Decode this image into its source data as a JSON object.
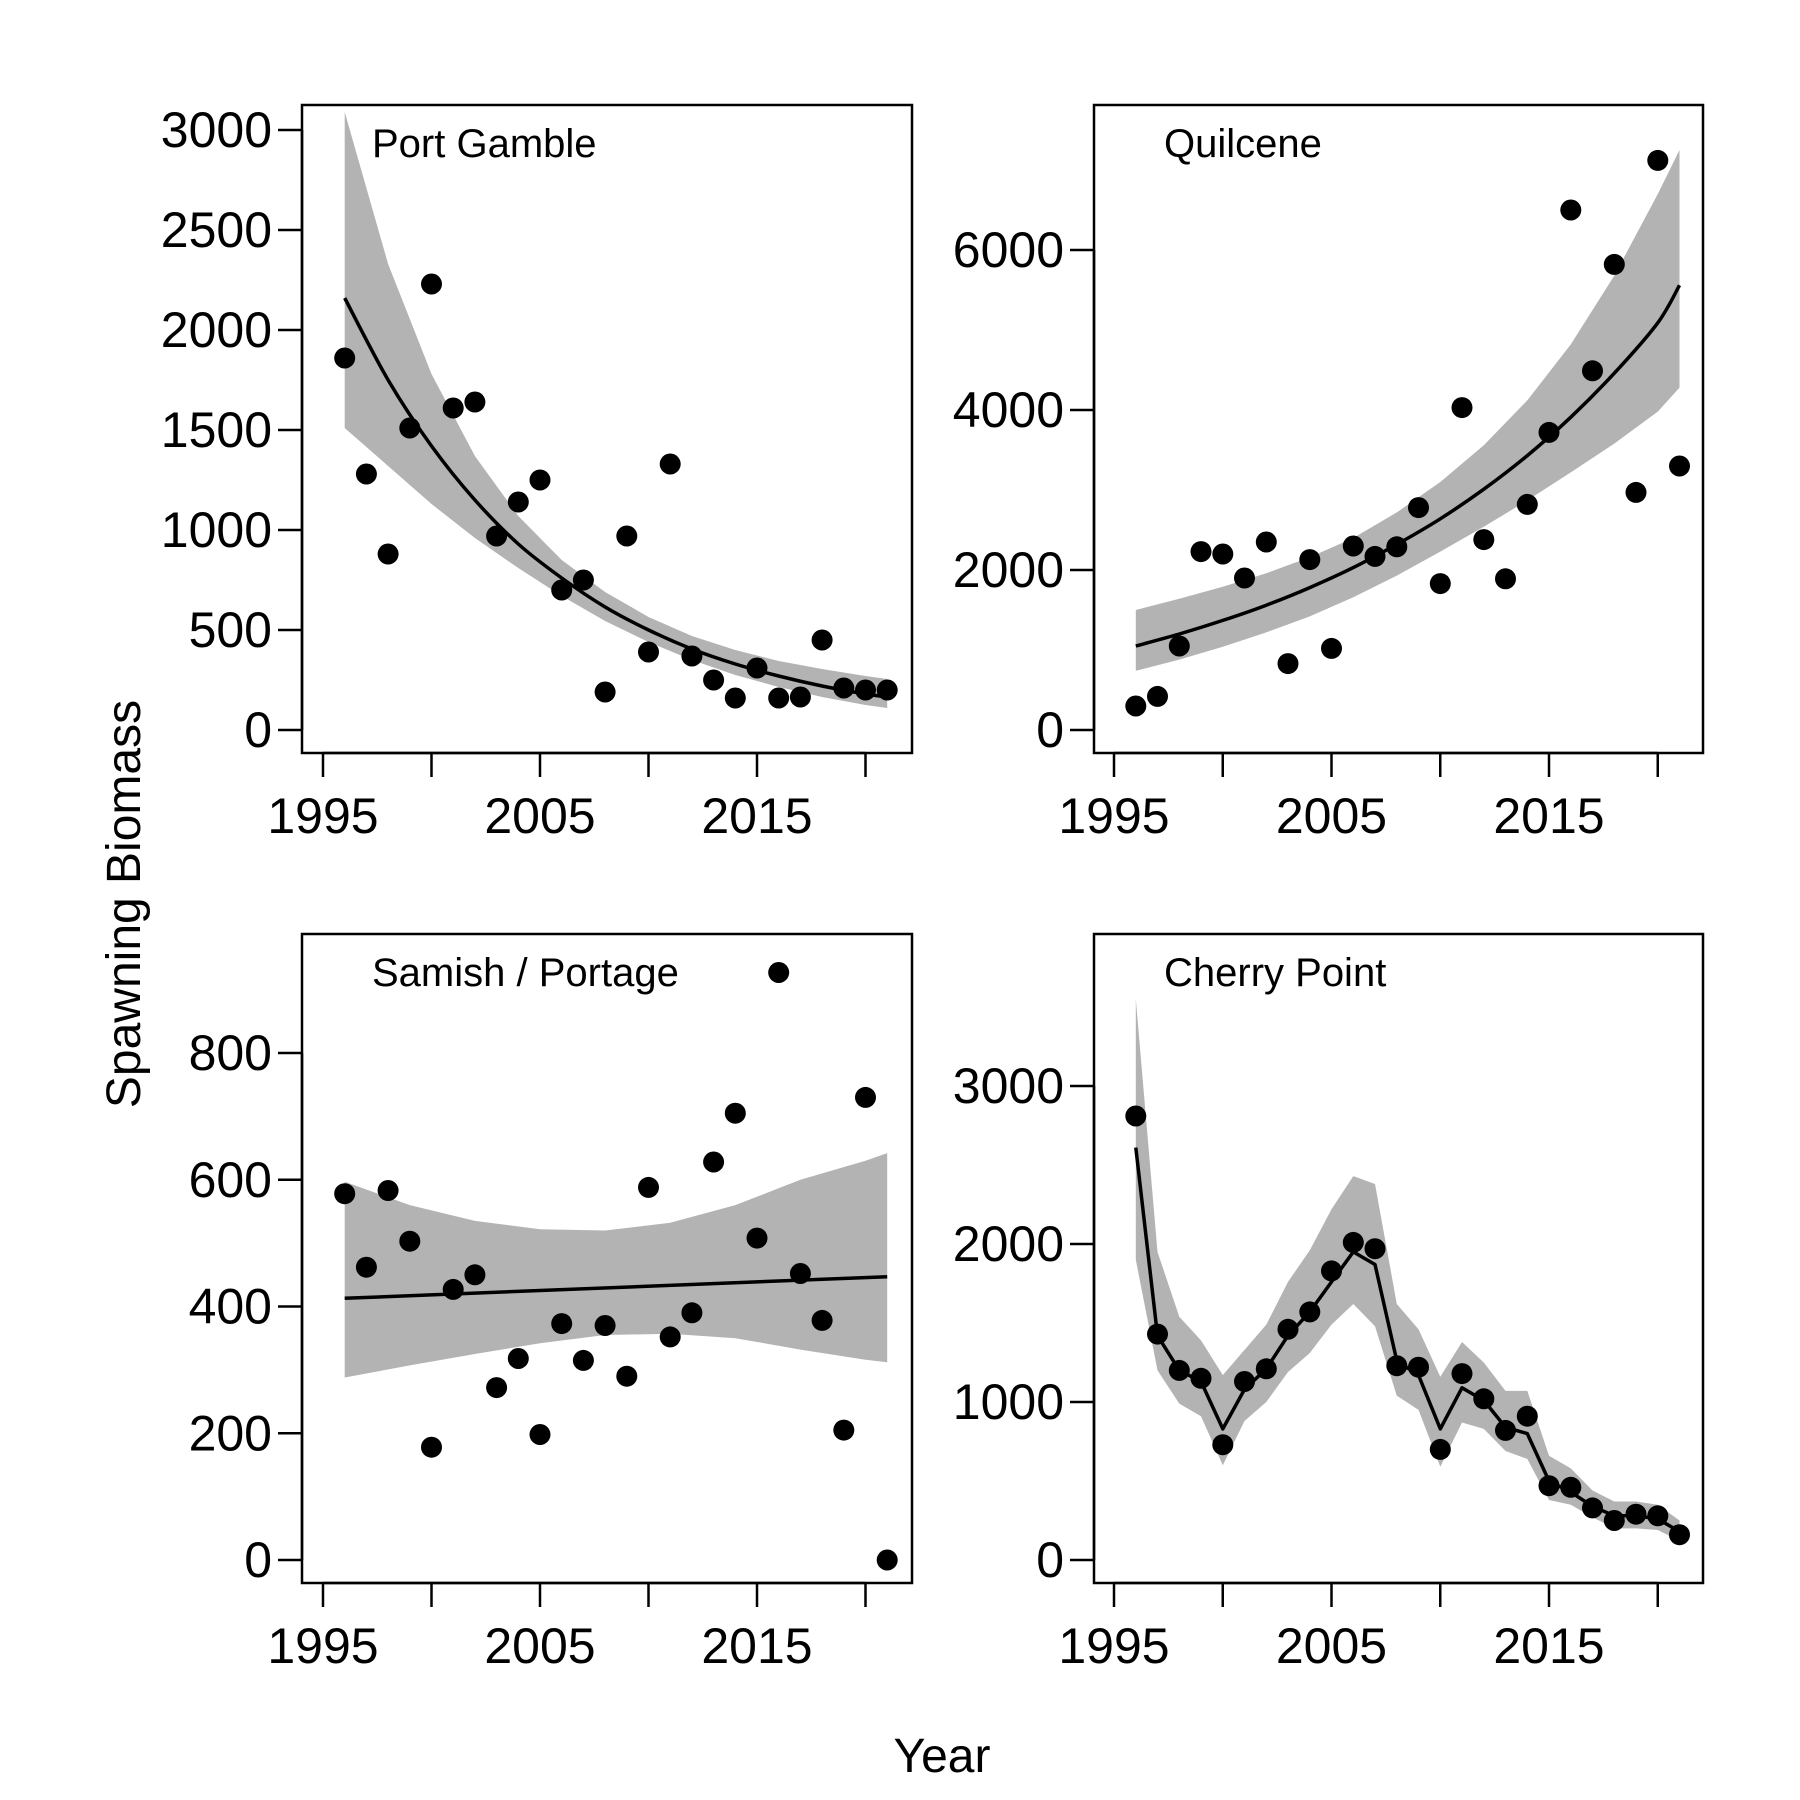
{
  "figure": {
    "xlabel": "Year",
    "ylabel": "Spawning Biomass"
  },
  "chart_data": [
    {
      "type": "scatter",
      "title": "Port Gamble",
      "xlim": [
        1995,
        2021
      ],
      "ylim": [
        0,
        3000
      ],
      "x_ticks": [
        1995,
        2005,
        2015
      ],
      "y_ticks": [
        0,
        500,
        1000,
        1500,
        2000,
        2500,
        3000
      ],
      "points": [
        {
          "x": 1996,
          "y": 1860
        },
        {
          "x": 1997,
          "y": 1280
        },
        {
          "x": 1998,
          "y": 880
        },
        {
          "x": 1999,
          "y": 1510
        },
        {
          "x": 2000,
          "y": 2230
        },
        {
          "x": 2001,
          "y": 1610
        },
        {
          "x": 2002,
          "y": 1640
        },
        {
          "x": 2003,
          "y": 970
        },
        {
          "x": 2004,
          "y": 1140
        },
        {
          "x": 2005,
          "y": 1250
        },
        {
          "x": 2006,
          "y": 700
        },
        {
          "x": 2007,
          "y": 750
        },
        {
          "x": 2008,
          "y": 190
        },
        {
          "x": 2009,
          "y": 970
        },
        {
          "x": 2010,
          "y": 390
        },
        {
          "x": 2011,
          "y": 1330
        },
        {
          "x": 2012,
          "y": 370
        },
        {
          "x": 2013,
          "y": 250
        },
        {
          "x": 2014,
          "y": 160
        },
        {
          "x": 2015,
          "y": 310
        },
        {
          "x": 2016,
          "y": 160
        },
        {
          "x": 2017,
          "y": 165
        },
        {
          "x": 2018,
          "y": 450
        },
        {
          "x": 2019,
          "y": 210
        },
        {
          "x": 2020,
          "y": 200
        },
        {
          "x": 2021,
          "y": 200
        }
      ],
      "fit": {
        "x": [
          1996,
          1998,
          2000,
          2002,
          2004,
          2006,
          2008,
          2010,
          2012,
          2014,
          2016,
          2018,
          2020,
          2021
        ],
        "y": [
          2160,
          1750,
          1420,
          1150,
          930,
          760,
          615,
          500,
          405,
          330,
          270,
          220,
          180,
          165
        ]
      },
      "ci_upper": [
        3090,
        2330,
        1780,
        1370,
        1070,
        850,
        690,
        565,
        470,
        400,
        345,
        305,
        270,
        255
      ],
      "ci_lower": [
        1510,
        1320,
        1130,
        960,
        810,
        670,
        545,
        440,
        350,
        275,
        215,
        165,
        125,
        110
      ]
    },
    {
      "type": "scatter",
      "title": "Quilcene",
      "xlim": [
        1995,
        2021
      ],
      "ylim": [
        0,
        7200
      ],
      "x_ticks": [
        1995,
        2005,
        2015
      ],
      "y_ticks": [
        0,
        2000,
        4000,
        6000
      ],
      "points": [
        {
          "x": 1996,
          "y": 300
        },
        {
          "x": 1997,
          "y": 420
        },
        {
          "x": 1998,
          "y": 1050
        },
        {
          "x": 1999,
          "y": 2230
        },
        {
          "x": 2000,
          "y": 2200
        },
        {
          "x": 2001,
          "y": 1900
        },
        {
          "x": 2002,
          "y": 2350
        },
        {
          "x": 2003,
          "y": 830
        },
        {
          "x": 2004,
          "y": 2130
        },
        {
          "x": 2005,
          "y": 1020
        },
        {
          "x": 2006,
          "y": 2300
        },
        {
          "x": 2007,
          "y": 2170
        },
        {
          "x": 2008,
          "y": 2290
        },
        {
          "x": 2009,
          "y": 2780
        },
        {
          "x": 2010,
          "y": 1830
        },
        {
          "x": 2011,
          "y": 4030
        },
        {
          "x": 2012,
          "y": 2380
        },
        {
          "x": 2013,
          "y": 1890
        },
        {
          "x": 2014,
          "y": 2820
        },
        {
          "x": 2015,
          "y": 3720
        },
        {
          "x": 2016,
          "y": 6500
        },
        {
          "x": 2017,
          "y": 4490
        },
        {
          "x": 2018,
          "y": 5820
        },
        {
          "x": 2019,
          "y": 2970
        },
        {
          "x": 2020,
          "y": 7120
        },
        {
          "x": 2021,
          "y": 3300
        }
      ],
      "fit": {
        "x": [
          1996,
          1998,
          2000,
          2002,
          2004,
          2006,
          2008,
          2010,
          2012,
          2014,
          2016,
          2018,
          2020,
          2021
        ],
        "y": [
          1050,
          1200,
          1370,
          1560,
          1780,
          2030,
          2320,
          2640,
          3010,
          3430,
          3910,
          4460,
          5090,
          5560
        ]
      },
      "ci_upper": [
        1500,
        1640,
        1790,
        1960,
        2160,
        2400,
        2720,
        3100,
        3560,
        4120,
        4820,
        5680,
        6700,
        7250
      ],
      "ci_lower": [
        740,
        880,
        1040,
        1220,
        1420,
        1660,
        1930,
        2230,
        2540,
        2870,
        3220,
        3580,
        3980,
        4280
      ]
    },
    {
      "type": "scatter",
      "title": "Samish / Portage",
      "xlim": [
        1995,
        2021
      ],
      "ylim": [
        0,
        950
      ],
      "x_ticks": [
        1995,
        2005,
        2015
      ],
      "y_ticks": [
        0,
        200,
        400,
        600,
        800
      ],
      "points": [
        {
          "x": 1996,
          "y": 578
        },
        {
          "x": 1997,
          "y": 462
        },
        {
          "x": 1998,
          "y": 583
        },
        {
          "x": 1999,
          "y": 503
        },
        {
          "x": 2000,
          "y": 178
        },
        {
          "x": 2001,
          "y": 427
        },
        {
          "x": 2002,
          "y": 450
        },
        {
          "x": 2003,
          "y": 272
        },
        {
          "x": 2004,
          "y": 318
        },
        {
          "x": 2005,
          "y": 198
        },
        {
          "x": 2006,
          "y": 373
        },
        {
          "x": 2007,
          "y": 315
        },
        {
          "x": 2008,
          "y": 370
        },
        {
          "x": 2009,
          "y": 290
        },
        {
          "x": 2010,
          "y": 588
        },
        {
          "x": 2011,
          "y": 352
        },
        {
          "x": 2012,
          "y": 390
        },
        {
          "x": 2013,
          "y": 628
        },
        {
          "x": 2014,
          "y": 705
        },
        {
          "x": 2015,
          "y": 508
        },
        {
          "x": 2016,
          "y": 927
        },
        {
          "x": 2017,
          "y": 452
        },
        {
          "x": 2018,
          "y": 378
        },
        {
          "x": 2019,
          "y": 205
        },
        {
          "x": 2020,
          "y": 730
        },
        {
          "x": 2021,
          "y": 0
        }
      ],
      "fit": {
        "x": [
          1996,
          2021
        ],
        "y": [
          413,
          447
        ]
      },
      "ci_x": [
        1996,
        1999,
        2002,
        2005,
        2008,
        2011,
        2014,
        2017,
        2020,
        2021
      ],
      "ci_upper": [
        597,
        560,
        535,
        522,
        520,
        532,
        560,
        600,
        630,
        642
      ],
      "ci_lower": [
        288,
        307,
        325,
        342,
        355,
        357,
        350,
        332,
        316,
        312
      ]
    },
    {
      "type": "line",
      "title": "Cherry Point",
      "xlim": [
        1995,
        2021
      ],
      "ylim": [
        0,
        3500
      ],
      "x_ticks": [
        1995,
        2005,
        2015
      ],
      "y_ticks": [
        0,
        1000,
        2000,
        3000
      ],
      "points": [
        {
          "x": 1996,
          "y": 2810
        },
        {
          "x": 1997,
          "y": 1430
        },
        {
          "x": 1998,
          "y": 1200
        },
        {
          "x": 1999,
          "y": 1150
        },
        {
          "x": 2000,
          "y": 730
        },
        {
          "x": 2001,
          "y": 1130
        },
        {
          "x": 2002,
          "y": 1210
        },
        {
          "x": 2003,
          "y": 1460
        },
        {
          "x": 2004,
          "y": 1570
        },
        {
          "x": 2005,
          "y": 1830
        },
        {
          "x": 2006,
          "y": 2010
        },
        {
          "x": 2007,
          "y": 1970
        },
        {
          "x": 2008,
          "y": 1230
        },
        {
          "x": 2009,
          "y": 1220
        },
        {
          "x": 2010,
          "y": 700
        },
        {
          "x": 2011,
          "y": 1180
        },
        {
          "x": 2012,
          "y": 1020
        },
        {
          "x": 2013,
          "y": 820
        },
        {
          "x": 2014,
          "y": 910
        },
        {
          "x": 2015,
          "y": 470
        },
        {
          "x": 2016,
          "y": 460
        },
        {
          "x": 2017,
          "y": 330
        },
        {
          "x": 2018,
          "y": 250
        },
        {
          "x": 2019,
          "y": 290
        },
        {
          "x": 2020,
          "y": 280
        },
        {
          "x": 2021,
          "y": 160
        }
      ],
      "fit": {
        "x": [
          1996,
          1997,
          1998,
          1999,
          2000,
          2001,
          2002,
          2003,
          2004,
          2005,
          2006,
          2007,
          2008,
          2009,
          2010,
          2011,
          2012,
          2013,
          2014,
          2015,
          2016,
          2017,
          2018,
          2019,
          2020,
          2021
        ],
        "y": [
          2610,
          1420,
          1200,
          1130,
          830,
          1080,
          1210,
          1420,
          1570,
          1760,
          1950,
          1870,
          1260,
          1170,
          830,
          1090,
          1010,
          840,
          800,
          500,
          430,
          340,
          280,
          280,
          260,
          180
        ]
      },
      "ci_upper": [
        3550,
        1950,
        1540,
        1390,
        1170,
        1330,
        1490,
        1760,
        1960,
        2220,
        2430,
        2380,
        1620,
        1460,
        1160,
        1380,
        1250,
        1070,
        1070,
        660,
        580,
        440,
        370,
        370,
        350,
        250
      ],
      "ci_lower": [
        1900,
        1200,
        990,
        910,
        600,
        880,
        1000,
        1190,
        1310,
        1490,
        1620,
        1480,
        1040,
        950,
        590,
        870,
        830,
        690,
        640,
        380,
        350,
        270,
        200,
        200,
        190,
        120
      ]
    }
  ]
}
